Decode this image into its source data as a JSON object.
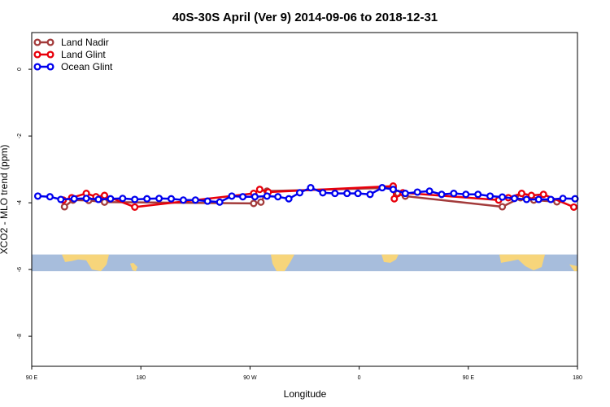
{
  "chart_data": {
    "type": "line",
    "title": "40S-30S April (Ver 9)   2014-09-06 to 2018-12-31",
    "xlabel": "Longitude",
    "ylabel": "XCO2 - MLO trend (ppm)",
    "x_ticks": [
      {
        "value": 90,
        "label": "90 E"
      },
      {
        "value": 180,
        "label": "180"
      },
      {
        "value": 270,
        "label": "90 W"
      },
      {
        "value": 360,
        "label": "0"
      },
      {
        "value": 450,
        "label": "90 E"
      },
      {
        "value": 540,
        "label": "180"
      }
    ],
    "y_ticks": [
      {
        "value": 0,
        "label": "0"
      },
      {
        "value": -2,
        "label": "-2"
      },
      {
        "value": -4,
        "label": "-4"
      },
      {
        "value": -6,
        "label": "-6"
      },
      {
        "value": -8,
        "label": "-8"
      }
    ],
    "xlim": [
      90,
      540
    ],
    "ylim": [
      -8.9,
      1.1
    ],
    "grid": false,
    "legend_position": "top-left",
    "map_strip": {
      "y_top": -5.55,
      "y_bottom": -6.05,
      "ocean_color": "#A7BDDC",
      "land_color": "#F7D57B"
    },
    "series": [
      {
        "name": "Land Nadir",
        "color": "#A33B3B",
        "points": [
          [
            117,
            -4.12
          ],
          [
            124,
            -3.92
          ],
          [
            137,
            -3.93
          ],
          [
            150,
            -3.98
          ],
          [
            273,
            -4.02
          ],
          [
            279,
            -3.98
          ],
          [
            284,
            -3.65
          ],
          [
            388,
            -3.55
          ],
          [
            392,
            -3.72
          ],
          [
            398,
            -3.8
          ],
          [
            478,
            -4.12
          ],
          [
            493,
            -3.85
          ],
          [
            504,
            -3.92
          ],
          [
            523,
            -3.97
          ]
        ]
      },
      {
        "name": "Land Glint",
        "color": "#E8000B",
        "points": [
          [
            116,
            -3.92
          ],
          [
            123,
            -3.85
          ],
          [
            135,
            -3.72
          ],
          [
            143,
            -3.82
          ],
          [
            150,
            -3.78
          ],
          [
            175,
            -4.13
          ],
          [
            273,
            -3.72
          ],
          [
            278,
            -3.6
          ],
          [
            285,
            -3.68
          ],
          [
            388,
            -3.5
          ],
          [
            389,
            -3.88
          ],
          [
            396,
            -3.7
          ],
          [
            475,
            -3.92
          ],
          [
            483,
            -3.85
          ],
          [
            494,
            -3.72
          ],
          [
            502,
            -3.78
          ],
          [
            512,
            -3.75
          ],
          [
            537,
            -4.13
          ]
        ]
      },
      {
        "name": "Ocean Glint",
        "color": "#0000EE",
        "points": [
          [
            95,
            -3.8
          ],
          [
            105,
            -3.82
          ],
          [
            114,
            -3.9
          ],
          [
            125,
            -3.88
          ],
          [
            135,
            -3.87
          ],
          [
            145,
            -3.9
          ],
          [
            155,
            -3.88
          ],
          [
            165,
            -3.87
          ],
          [
            175,
            -3.9
          ],
          [
            185,
            -3.88
          ],
          [
            195,
            -3.87
          ],
          [
            205,
            -3.88
          ],
          [
            215,
            -3.92
          ],
          [
            225,
            -3.92
          ],
          [
            235,
            -3.95
          ],
          [
            245,
            -3.98
          ],
          [
            255,
            -3.8
          ],
          [
            264,
            -3.82
          ],
          [
            274,
            -3.82
          ],
          [
            284,
            -3.8
          ],
          [
            293,
            -3.82
          ],
          [
            302,
            -3.88
          ],
          [
            311,
            -3.7
          ],
          [
            320,
            -3.55
          ],
          [
            330,
            -3.7
          ],
          [
            340,
            -3.72
          ],
          [
            350,
            -3.72
          ],
          [
            359,
            -3.72
          ],
          [
            369,
            -3.75
          ],
          [
            379,
            -3.55
          ],
          [
            388,
            -3.6
          ],
          [
            398,
            -3.72
          ],
          [
            408,
            -3.68
          ],
          [
            418,
            -3.65
          ],
          [
            428,
            -3.75
          ],
          [
            438,
            -3.72
          ],
          [
            448,
            -3.75
          ],
          [
            458,
            -3.75
          ],
          [
            468,
            -3.8
          ],
          [
            478,
            -3.83
          ],
          [
            488,
            -3.87
          ],
          [
            498,
            -3.9
          ],
          [
            508,
            -3.9
          ],
          [
            518,
            -3.9
          ],
          [
            528,
            -3.87
          ],
          [
            538,
            -3.88
          ]
        ]
      }
    ]
  }
}
